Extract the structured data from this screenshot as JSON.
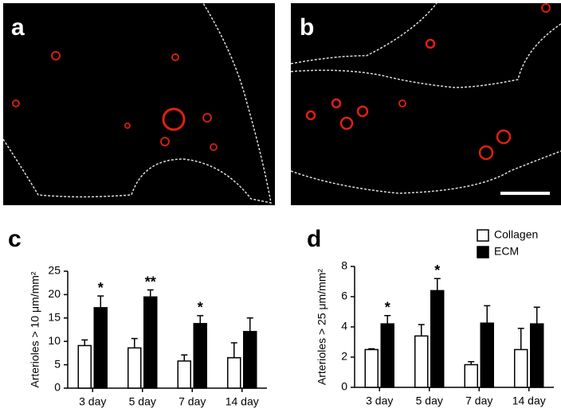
{
  "panels": [
    "a",
    "b"
  ],
  "chart_data": [
    {
      "type": "bar",
      "panel": "c",
      "ylabel": "Arterioles > 10 μm/mm²",
      "categories": [
        "3 day",
        "5 day",
        "7 day",
        "14 day"
      ],
      "series": [
        {
          "name": "Collagen",
          "color": "#ffffff",
          "values": [
            9.1,
            8.6,
            5.8,
            6.5
          ],
          "errors": [
            1.2,
            2.0,
            1.3,
            3.2
          ]
        },
        {
          "name": "ECM",
          "color": "#000000",
          "values": [
            17.2,
            19.5,
            13.8,
            12.1
          ],
          "errors": [
            2.5,
            1.5,
            1.7,
            2.9
          ],
          "annotations": [
            "*",
            "**",
            "*",
            null
          ]
        }
      ],
      "ylim": [
        0,
        25
      ],
      "yticks": [
        0,
        5,
        10,
        15,
        20,
        25
      ],
      "legend": false
    },
    {
      "type": "bar",
      "panel": "d",
      "ylabel": "Arterioles > 25 μm/mm²",
      "categories": [
        "3 day",
        "5 day",
        "7 day",
        "14 day"
      ],
      "series": [
        {
          "name": "Collagen",
          "color": "#ffffff",
          "values": [
            2.5,
            3.4,
            1.5,
            2.5
          ],
          "errors": [
            0.05,
            0.75,
            0.2,
            1.4
          ]
        },
        {
          "name": "ECM",
          "color": "#000000",
          "values": [
            4.2,
            6.4,
            4.25,
            4.2
          ],
          "errors": [
            0.55,
            0.8,
            1.15,
            1.1
          ],
          "annotations": [
            "*",
            "*",
            null,
            null
          ]
        }
      ],
      "ylim": [
        0,
        8
      ],
      "yticks": [
        0,
        2,
        4,
        6,
        8
      ],
      "legend": true
    }
  ]
}
